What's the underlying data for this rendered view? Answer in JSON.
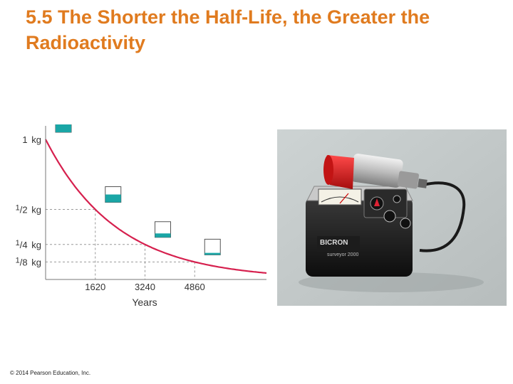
{
  "slide": {
    "title_line1": "5.5 The Shorter the Half-Life, the Greater the",
    "title_line2": "Radioactivity",
    "copyright": "© 2014 Pearson Education, Inc."
  },
  "chart_data": {
    "type": "line",
    "xlabel": "Years",
    "ylabel": "",
    "x_ticks": [
      "1620",
      "3240",
      "4860"
    ],
    "y_ticks": [
      {
        "num": "1",
        "unit": "kg"
      },
      {
        "num": "1",
        "den": "2",
        "unit": "kg"
      },
      {
        "num": "1",
        "den": "4",
        "unit": "kg"
      },
      {
        "num": "1",
        "den": "8",
        "unit": "kg"
      }
    ],
    "half_life_years": 1620,
    "points": [
      {
        "x": 0,
        "y": 1
      },
      {
        "x": 1620,
        "y": 0.5
      },
      {
        "x": 3240,
        "y": 0.25
      },
      {
        "x": 4860,
        "y": 0.125
      }
    ],
    "xlim": [
      0,
      7200
    ],
    "curve_color": "#d6204e",
    "fill_color": "#1aa6a6"
  },
  "photo": {
    "device_brand": "BICRON",
    "device_model": "surveyor 2000"
  }
}
